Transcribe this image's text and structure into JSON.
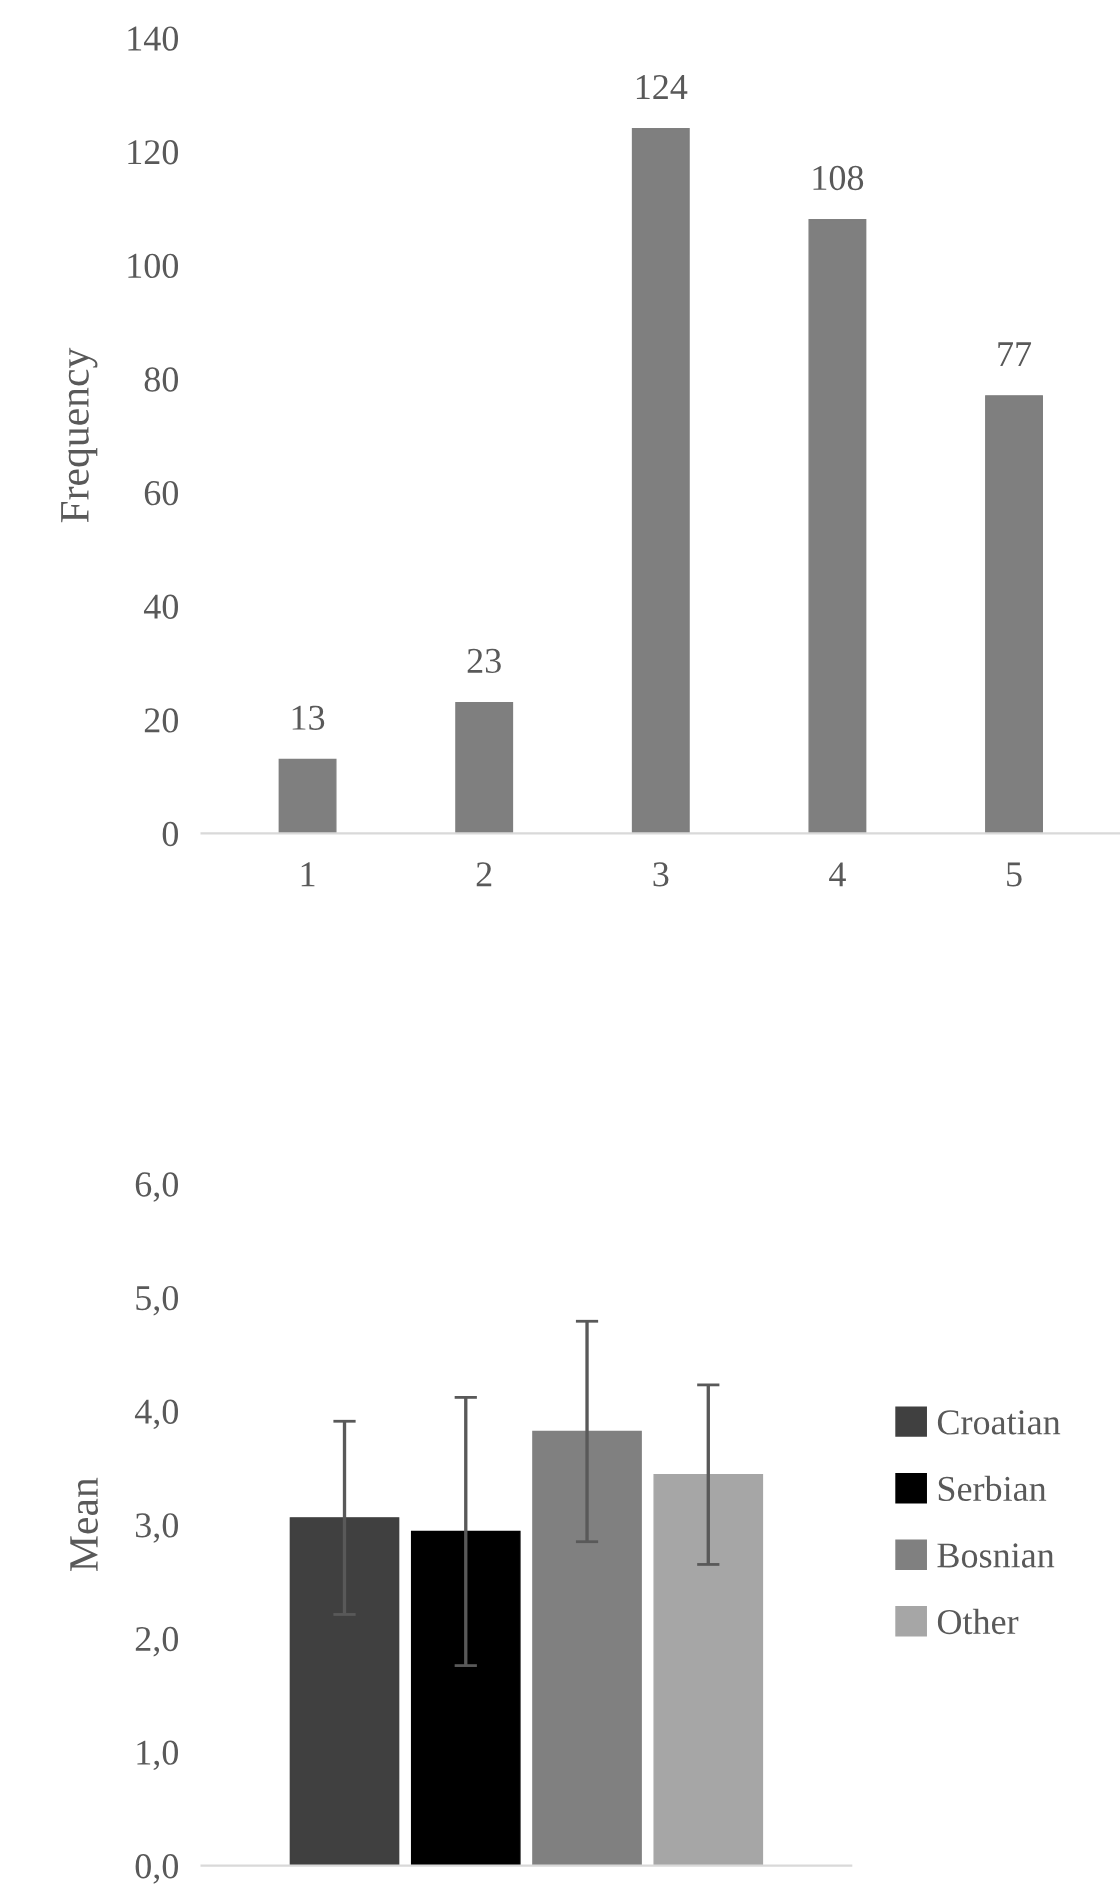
{
  "chart_data": [
    {
      "type": "bar",
      "ylabel": "Frequency",
      "categories": [
        "1",
        "2",
        "3",
        "4",
        "5"
      ],
      "series": [
        {
          "color": "#7f7f7f",
          "values": [
            13,
            23,
            124,
            108,
            77
          ]
        }
      ],
      "ylim": [
        0,
        140
      ],
      "yticks": [
        0,
        20,
        40,
        60,
        80,
        100,
        120,
        140
      ],
      "data_labels": true,
      "grid": false,
      "legend": false
    },
    {
      "type": "bar",
      "ylabel": "Mean",
      "categories": [
        null
      ],
      "series": [
        {
          "name": "Croatian",
          "color": "#404040",
          "values": [
            3.06
          ],
          "errors": [
            0.85
          ]
        },
        {
          "name": "Serbian",
          "color": "#000000",
          "values": [
            2.94
          ],
          "errors": [
            1.18
          ]
        },
        {
          "name": "Bosnian",
          "color": "#808080",
          "values": [
            3.82
          ],
          "errors": [
            0.97
          ]
        },
        {
          "name": "Other",
          "color": "#a6a6a6",
          "values": [
            3.44
          ],
          "errors": [
            0.79
          ]
        }
      ],
      "ylim": [
        0,
        6
      ],
      "yticks": [
        {
          "value": 0,
          "label": "0,0"
        },
        {
          "value": 1,
          "label": "1,0"
        },
        {
          "value": 2,
          "label": "2,0"
        },
        {
          "value": 3,
          "label": "3,0"
        },
        {
          "value": 4,
          "label": "4,0"
        },
        {
          "value": 5,
          "label": "5,0"
        },
        {
          "value": 6,
          "label": "6,0"
        }
      ],
      "tick_labels": "y",
      "grid": false,
      "legend": "right"
    }
  ]
}
